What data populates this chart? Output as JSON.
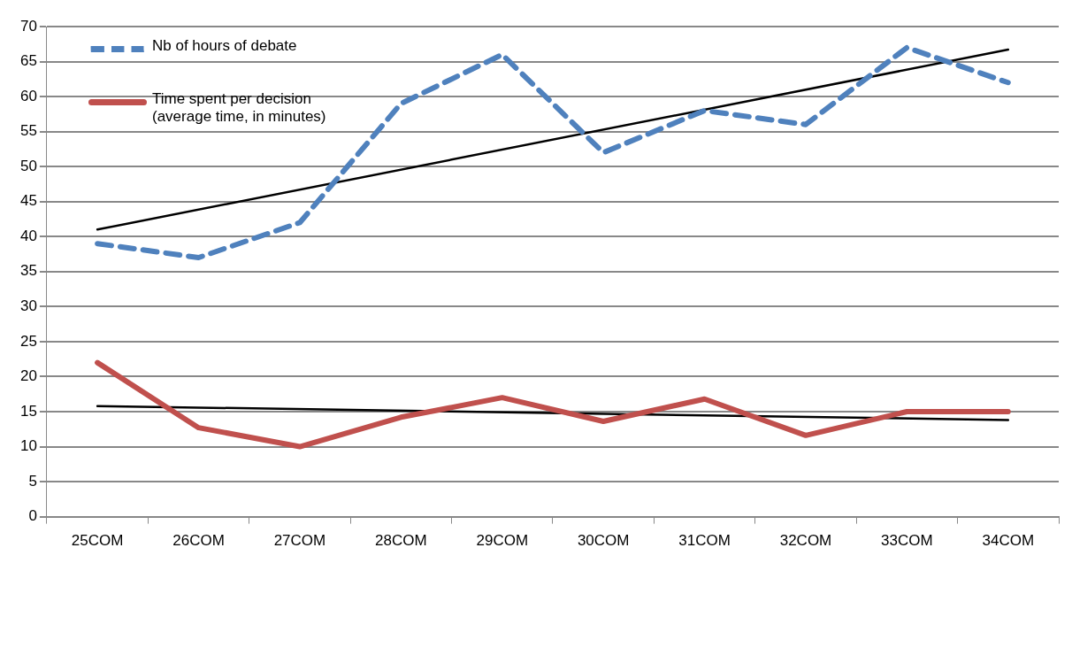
{
  "chart_data": {
    "type": "line",
    "categories": [
      "25COM",
      "26COM",
      "27COM",
      "28COM",
      "29COM",
      "30COM",
      "31COM",
      "32COM",
      "33COM",
      "34COM"
    ],
    "series": [
      {
        "name": "Nb of hours of debate",
        "color": "#4f81bd",
        "line_style": "dashed",
        "values": [
          39,
          37,
          42,
          59,
          66,
          52,
          58,
          56,
          67,
          62
        ]
      },
      {
        "name": "Time spent per decision (average time, in minutes)",
        "color": "#c0504d",
        "line_style": "solid",
        "values": [
          22,
          12.7,
          10,
          14.2,
          17,
          13.6,
          16.8,
          11.6,
          15,
          15
        ]
      },
      {
        "type": "line",
        "color": "#000000",
        "line_style": "solid",
        "x": [
          "25COM",
          "34COM"
        ],
        "values": [
          41,
          66.7
        ]
      },
      {
        "type": "line",
        "color": "#000000",
        "line_style": "solid",
        "x": [
          "25COM",
          "34COM"
        ],
        "values": [
          15.8,
          13.8
        ]
      }
    ],
    "ylim": [
      0,
      70
    ],
    "yticks": [
      0,
      5,
      10,
      15,
      20,
      25,
      30,
      35,
      40,
      45,
      50,
      55,
      60,
      65,
      70
    ],
    "grid": "y",
    "legend": "top left",
    "marker": "none"
  }
}
